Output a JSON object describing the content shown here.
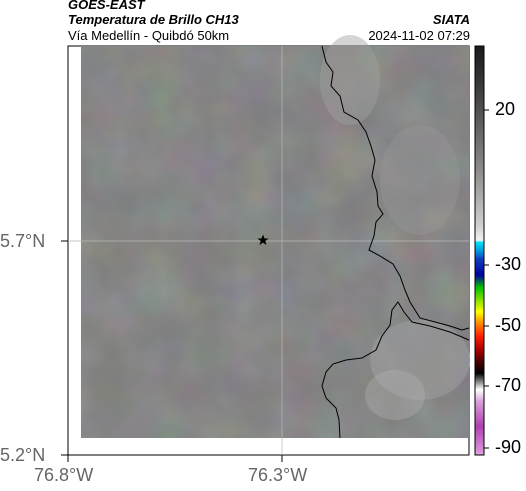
{
  "header": {
    "satellite": "GOES-EAST",
    "product": "Temperatura de Brillo CH13",
    "region": "Vía Medellín - Quibdó 50km",
    "source": "SIATA",
    "datetime": "2024-11-02 07:29"
  },
  "map": {
    "lat_labels": [
      "5.7°N",
      "5.2°N"
    ],
    "lon_labels": [
      "76.8°W",
      "76.3°W"
    ],
    "marker": "star-icon",
    "background_color": "#808080"
  },
  "colorbar": {
    "labels": [
      "20",
      "-30",
      "-50",
      "-70",
      "-90"
    ],
    "colors": {
      "cyan": "#00c8ff",
      "blue": "#0000c8",
      "green": "#00b400",
      "yellow": "#ffff00",
      "red": "#ff2000",
      "magenta": "#c000c0"
    }
  }
}
